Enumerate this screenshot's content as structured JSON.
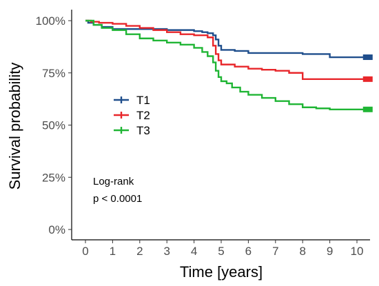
{
  "chart_data": {
    "type": "line",
    "subtype": "kaplan-meier step",
    "title": "",
    "xlabel": "Time [years]",
    "ylabel": "Survival probability",
    "xlim": [
      0,
      10
    ],
    "ylim": [
      0,
      1
    ],
    "xticks": [
      "0",
      "1",
      "2",
      "3",
      "4",
      "5",
      "6",
      "7",
      "8",
      "9",
      "10"
    ],
    "yticks": [
      "0%",
      "25%",
      "50%",
      "75%",
      "100%"
    ],
    "grid": false,
    "legend_position": "left-middle",
    "annotation": [
      "Log-rank",
      "p < 0.0001"
    ],
    "series": [
      {
        "name": "T1",
        "color": "#1f4e8c",
        "x": [
          0,
          0.1,
          0.3,
          0.6,
          1.0,
          2.0,
          3.0,
          4.0,
          4.3,
          4.5,
          4.7,
          4.8,
          4.9,
          5.0,
          5.5,
          6.0,
          7.0,
          8.0,
          9.0,
          10.4
        ],
        "y": [
          1.0,
          0.99,
          0.98,
          0.97,
          0.96,
          0.96,
          0.955,
          0.95,
          0.945,
          0.94,
          0.93,
          0.91,
          0.88,
          0.86,
          0.855,
          0.845,
          0.845,
          0.84,
          0.825,
          0.825
        ]
      },
      {
        "name": "T2",
        "color": "#e8262a",
        "x": [
          0,
          0.2,
          0.5,
          1.0,
          1.5,
          2.0,
          2.5,
          3.0,
          3.5,
          4.0,
          4.5,
          4.7,
          4.8,
          4.9,
          5.0,
          5.5,
          6.0,
          6.5,
          7.0,
          7.5,
          8.0,
          9.0,
          10.4
        ],
        "y": [
          1.0,
          0.995,
          0.99,
          0.985,
          0.975,
          0.965,
          0.955,
          0.945,
          0.935,
          0.93,
          0.92,
          0.88,
          0.84,
          0.81,
          0.79,
          0.78,
          0.77,
          0.765,
          0.76,
          0.75,
          0.72,
          0.72,
          0.72
        ]
      },
      {
        "name": "T3",
        "color": "#1fb534",
        "x": [
          0,
          0.3,
          0.6,
          1.0,
          1.5,
          2.0,
          2.5,
          3.0,
          3.5,
          4.0,
          4.3,
          4.5,
          4.7,
          4.8,
          4.9,
          5.0,
          5.2,
          5.4,
          5.7,
          6.0,
          6.5,
          7.0,
          7.5,
          8.0,
          8.5,
          9.0,
          10.4
        ],
        "y": [
          1.0,
          0.98,
          0.965,
          0.955,
          0.935,
          0.915,
          0.905,
          0.895,
          0.885,
          0.87,
          0.85,
          0.83,
          0.8,
          0.76,
          0.73,
          0.71,
          0.7,
          0.68,
          0.66,
          0.645,
          0.63,
          0.615,
          0.6,
          0.585,
          0.58,
          0.575,
          0.575
        ]
      }
    ]
  }
}
